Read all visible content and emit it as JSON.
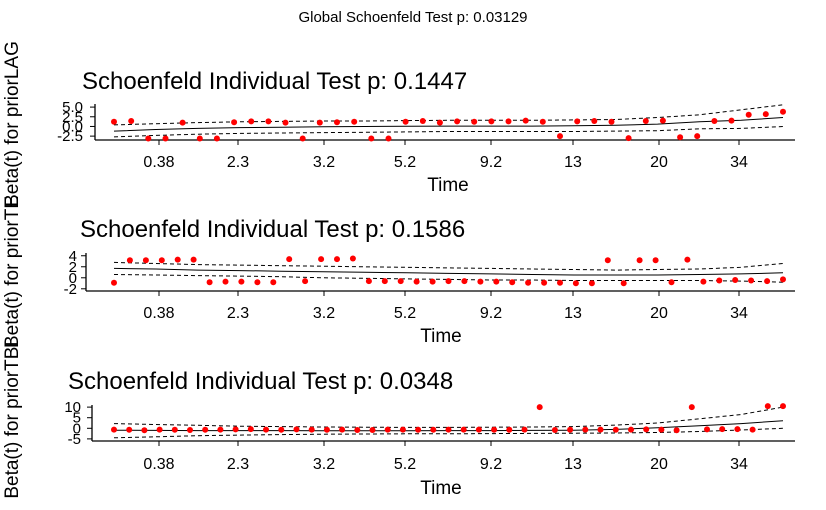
{
  "figure": {
    "title": "Global Schoenfeld Test p: 0.03129"
  },
  "colors": {
    "points": "#ff0000",
    "lines": "#000000",
    "background": "#ffffff"
  },
  "chart_data": [
    {
      "type": "scatter",
      "title": "Schoenfeld Individual Test p: 0.1447",
      "xlabel": "Time",
      "ylabel": "Beta(t) for priorLAG",
      "x_tick_labels": [
        "0.38",
        "2.3",
        "3.2",
        "5.2",
        "9.2",
        "13",
        "20",
        "34"
      ],
      "y_tick_labels": [
        "-2.5",
        "0.0",
        "2.5",
        "5.0"
      ],
      "y_ticks": [
        -2.5,
        0.0,
        2.5,
        5.0
      ],
      "ylim": [
        -3.5,
        5.8
      ],
      "points_y": [
        1.2,
        1.4,
        -3.1,
        -3.1,
        1.0,
        -3.1,
        -3.1,
        1.1,
        1.3,
        1.3,
        1.0,
        -3.1,
        1.0,
        1.1,
        1.2,
        -3.1,
        -3.1,
        1.2,
        1.4,
        1.0,
        1.3,
        1.2,
        1.3,
        1.3,
        1.5,
        1.2,
        -2.5,
        1.3,
        1.4,
        1.2,
        -3.0,
        1.4,
        1.5,
        -2.8,
        -2.5,
        1.4,
        1.5,
        3.0,
        3.2,
        3.8
      ],
      "fit_y": [
        -1.2,
        -0.8,
        -0.5,
        -0.3,
        -0.2,
        -0.1,
        0.0,
        0.05,
        0.1,
        0.1,
        0.1,
        0.2,
        0.3,
        0.6,
        1.2,
        1.6,
        2.3
      ],
      "upper_y": [
        0.4,
        0.7,
        1.0,
        1.2,
        1.3,
        1.4,
        1.4,
        1.5,
        1.6,
        1.6,
        1.6,
        1.7,
        1.8,
        2.3,
        3.0,
        4.3,
        5.6
      ],
      "lower_y": [
        -2.7,
        -2.3,
        -2.0,
        -1.8,
        -1.7,
        -1.6,
        -1.5,
        -1.4,
        -1.3,
        -1.3,
        -1.3,
        -1.3,
        -1.2,
        -1.1,
        -0.6,
        -0.5,
        0.0
      ]
    },
    {
      "type": "scatter",
      "title": "Schoenfeld Individual Test p: 0.1586",
      "xlabel": "Time",
      "ylabel": "Beta(t) for priorTE",
      "x_tick_labels": [
        "0.38",
        "2.3",
        "3.2",
        "5.2",
        "9.2",
        "13",
        "20",
        "34"
      ],
      "y_tick_labels": [
        "-2",
        "0",
        "2",
        "4"
      ],
      "y_ticks": [
        -2,
        0,
        2,
        4
      ],
      "ylim": [
        -2.4,
        4.5
      ],
      "points_y": [
        -0.9,
        3.2,
        3.2,
        3.2,
        3.3,
        3.3,
        -0.8,
        -0.7,
        -0.7,
        -0.8,
        -0.8,
        3.4,
        -0.6,
        3.4,
        3.4,
        3.5,
        -0.6,
        -0.6,
        -0.6,
        -0.7,
        -0.7,
        -0.6,
        -0.6,
        -0.7,
        -0.7,
        -0.8,
        -0.9,
        -0.9,
        -0.9,
        -1.0,
        -1.0,
        3.2,
        -1.0,
        3.2,
        3.2,
        -0.8,
        3.3,
        -0.7,
        -0.5,
        -0.4,
        -0.5,
        -0.6,
        -0.3
      ],
      "fit_y": [
        1.7,
        1.6,
        1.4,
        1.3,
        1.2,
        1.1,
        1.0,
        0.9,
        0.8,
        0.7,
        0.6,
        0.5,
        0.5,
        0.5,
        0.6,
        0.7,
        0.9
      ],
      "upper_y": [
        2.8,
        2.6,
        2.4,
        2.3,
        2.2,
        2.1,
        2.0,
        1.9,
        1.8,
        1.7,
        1.6,
        1.5,
        1.4,
        1.5,
        1.6,
        1.9,
        2.6
      ],
      "lower_y": [
        0.6,
        0.5,
        0.4,
        0.3,
        0.2,
        0.0,
        -0.1,
        -0.2,
        -0.3,
        -0.4,
        -0.4,
        -0.5,
        -0.5,
        -0.5,
        -0.5,
        -0.6,
        -0.8
      ]
    },
    {
      "type": "scatter",
      "title": "Schoenfeld Individual Test p: 0.0348",
      "xlabel": "Time",
      "ylabel": "Beta(t) for priorTBI",
      "x_tick_labels": [
        "0.38",
        "2.3",
        "3.2",
        "5.2",
        "9.2",
        "13",
        "20",
        "34"
      ],
      "y_tick_labels": [
        "-5",
        "0",
        "5",
        "10"
      ],
      "y_ticks": [
        -5,
        0,
        5,
        10
      ],
      "ylim": [
        -6,
        11
      ],
      "points_y": [
        -0.6,
        -0.7,
        -0.9,
        -0.6,
        -0.7,
        -0.8,
        -0.7,
        -0.6,
        -0.5,
        -0.4,
        -0.6,
        -0.7,
        -0.5,
        -0.6,
        -0.7,
        -0.6,
        -0.8,
        -0.8,
        -0.6,
        -0.6,
        -0.7,
        -0.7,
        -0.6,
        -0.6,
        -0.6,
        -0.7,
        -0.7,
        -0.6,
        10.0,
        -0.8,
        -0.7,
        -0.6,
        -0.6,
        -0.7,
        -0.6,
        -0.5,
        -0.6,
        -0.9,
        10.0,
        -0.5,
        -0.4,
        -0.4,
        -0.6,
        10.5,
        10.5
      ],
      "fit_y": [
        -0.9,
        -1.0,
        -1.1,
        -1.1,
        -1.1,
        -1.2,
        -1.2,
        -1.2,
        -1.1,
        -1.1,
        -1.0,
        -0.9,
        -0.5,
        0.3,
        1.2,
        2.2,
        3.6
      ],
      "upper_y": [
        2.2,
        1.8,
        1.4,
        1.0,
        0.8,
        0.6,
        0.5,
        0.4,
        0.4,
        0.5,
        0.6,
        0.8,
        1.5,
        2.5,
        4.5,
        6.5,
        10.0
      ],
      "lower_y": [
        -4.5,
        -4.0,
        -3.5,
        -3.2,
        -3.0,
        -2.8,
        -2.7,
        -2.6,
        -2.6,
        -2.5,
        -2.4,
        -2.3,
        -2.2,
        -2.0,
        -1.5,
        -0.8,
        0.0
      ]
    }
  ]
}
